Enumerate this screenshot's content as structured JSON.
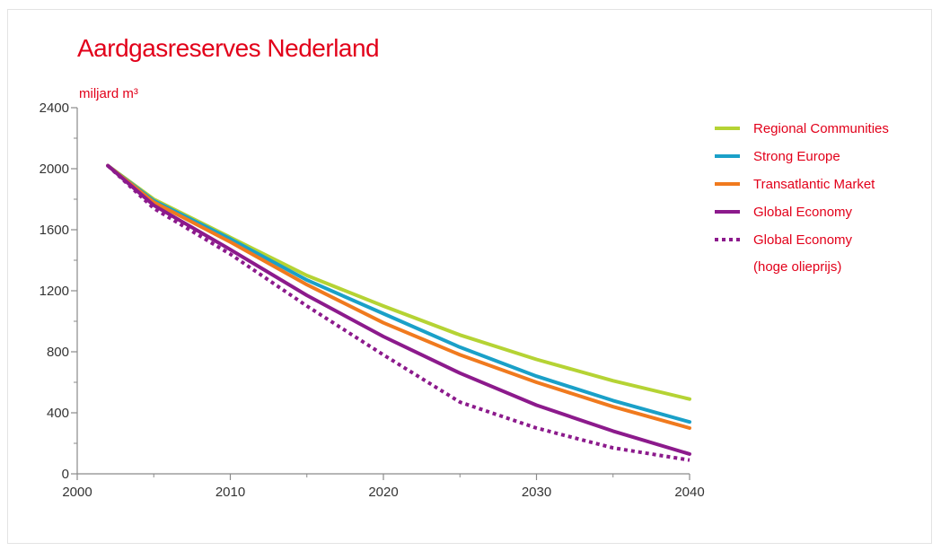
{
  "chart_data": {
    "type": "line",
    "title": "Aardgasreserves Nederland",
    "ylabel": "miljard m³",
    "xlabel": "",
    "xlim": [
      2000,
      2040
    ],
    "ylim": [
      0,
      2400
    ],
    "x_ticks": [
      2000,
      2010,
      2020,
      2030,
      2040
    ],
    "y_ticks": [
      0,
      400,
      800,
      1200,
      1600,
      2000,
      2400
    ],
    "grid": false,
    "legend_position": "right",
    "series": [
      {
        "name": "Regional Communities",
        "color": "#b5d334",
        "style": "solid",
        "points": [
          [
            2002,
            2020
          ],
          [
            2005,
            1800
          ],
          [
            2010,
            1550
          ],
          [
            2015,
            1300
          ],
          [
            2020,
            1100
          ],
          [
            2025,
            910
          ],
          [
            2030,
            750
          ],
          [
            2035,
            610
          ],
          [
            2040,
            490
          ]
        ]
      },
      {
        "name": "Strong Europe",
        "color": "#1aa0c8",
        "style": "solid",
        "points": [
          [
            2002,
            2020
          ],
          [
            2005,
            1790
          ],
          [
            2010,
            1540
          ],
          [
            2015,
            1270
          ],
          [
            2020,
            1050
          ],
          [
            2025,
            830
          ],
          [
            2030,
            640
          ],
          [
            2035,
            480
          ],
          [
            2040,
            340
          ]
        ]
      },
      {
        "name": "Transatlantic Market",
        "color": "#f07a1e",
        "style": "solid",
        "points": [
          [
            2002,
            2020
          ],
          [
            2005,
            1780
          ],
          [
            2010,
            1520
          ],
          [
            2015,
            1240
          ],
          [
            2020,
            990
          ],
          [
            2025,
            780
          ],
          [
            2030,
            600
          ],
          [
            2035,
            440
          ],
          [
            2040,
            300
          ]
        ]
      },
      {
        "name": "Global Economy",
        "color": "#8c1a8c",
        "style": "solid",
        "points": [
          [
            2002,
            2020
          ],
          [
            2005,
            1760
          ],
          [
            2010,
            1470
          ],
          [
            2015,
            1170
          ],
          [
            2020,
            900
          ],
          [
            2025,
            660
          ],
          [
            2030,
            450
          ],
          [
            2035,
            280
          ],
          [
            2040,
            130
          ]
        ]
      },
      {
        "name": "Global Economy",
        "name_line2": "(hoge olieprijs)",
        "color": "#8c1a8c",
        "style": "dotted",
        "points": [
          [
            2002,
            2020
          ],
          [
            2005,
            1740
          ],
          [
            2010,
            1440
          ],
          [
            2015,
            1100
          ],
          [
            2020,
            780
          ],
          [
            2025,
            470
          ],
          [
            2030,
            300
          ],
          [
            2035,
            170
          ],
          [
            2040,
            90
          ]
        ]
      }
    ]
  }
}
